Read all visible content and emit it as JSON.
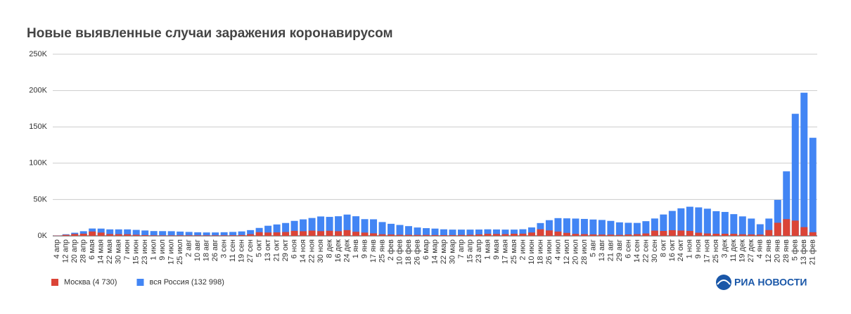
{
  "chart_data": {
    "type": "bar",
    "title": "Новые выявленные случаи заражения коронавирусом",
    "categories": [
      "4 апр",
      "12 апр",
      "20 апр",
      "28 апр",
      "6 мая",
      "14 мая",
      "22 мая",
      "30 мая",
      "7 июн",
      "15 июн",
      "23 июн",
      "1 июл",
      "9 июл",
      "17 июл",
      "25 июл",
      "2 авг",
      "10 авг",
      "18 авг",
      "26 авг",
      "3 сен",
      "11 сен",
      "19 сен",
      "27 сен",
      "5 окт",
      "13 окт",
      "21 окт",
      "29 окт",
      "6 ноя",
      "14 ноя",
      "22 ноя",
      "30 ноя",
      "8 дек",
      "16 дек",
      "24 дек",
      "1 янв",
      "9 янв",
      "17 янв",
      "25 янв",
      "2 фев",
      "10 фев",
      "18 фев",
      "26 фев",
      "6 мар",
      "14 мар",
      "22 мар",
      "30 мар",
      "7 апр",
      "15 апр",
      "23 апр",
      "1 мая",
      "9 мая",
      "17 мая",
      "25 мая",
      "2 июн",
      "10 июн",
      "18 июн",
      "26 июн",
      "4 июл",
      "12 июл",
      "20 июл",
      "28 июл",
      "5 авг",
      "13 авг",
      "21 авг",
      "29 авг",
      "6 сен",
      "14 сен",
      "22 сен",
      "30 сен",
      "8 окт",
      "16 окт",
      "24 окт",
      "1 ноя",
      "9 ноя",
      "17 ноя",
      "25 ноя",
      "3 дек",
      "11 дек",
      "19 дек",
      "27 дек",
      "4 янв",
      "12 янв",
      "20 янв",
      "28 янв",
      "5 фев",
      "13 фев",
      "21 фев"
    ],
    "series": [
      {
        "name": "вся Россия (132 998)",
        "color": "#4285f4",
        "values": [
          600,
          2200,
          4300,
          6400,
          10100,
          10000,
          8900,
          8900,
          8900,
          8200,
          7400,
          6600,
          6500,
          6400,
          5900,
          5400,
          4900,
          4700,
          4700,
          5000,
          5400,
          6100,
          7900,
          10900,
          13900,
          15700,
          17700,
          20600,
          22700,
          24600,
          26700,
          26100,
          27000,
          29300,
          27000,
          23000,
          22800,
          19000,
          16600,
          15000,
          13400,
          11500,
          10600,
          10000,
          9000,
          8600,
          8600,
          8600,
          8700,
          9000,
          8800,
          8600,
          8600,
          9100,
          11600,
          17600,
          21600,
          24400,
          24100,
          23800,
          23300,
          22500,
          21900,
          20600,
          18600,
          18000,
          17800,
          20200,
          23900,
          29400,
          34300,
          37900,
          40100,
          39200,
          37400,
          33900,
          32900,
          29900,
          26800,
          23800,
          16000,
          23800,
          49500,
          88800,
          168000,
          197000,
          135000
        ]
      },
      {
        "name": "Москва (4 730)",
        "color": "#db4437",
        "values": [
          400,
          1400,
          2600,
          3000,
          6000,
          4500,
          2500,
          2300,
          2200,
          1500,
          1000,
          700,
          600,
          600,
          700,
          700,
          700,
          700,
          700,
          700,
          800,
          1100,
          2300,
          5000,
          4600,
          4800,
          5300,
          6900,
          6400,
          7200,
          6500,
          7000,
          6400,
          7900,
          5600,
          4500,
          3500,
          2200,
          1900,
          1500,
          1400,
          1300,
          1300,
          1100,
          1000,
          1100,
          1300,
          1500,
          2000,
          2800,
          2600,
          2400,
          2900,
          3000,
          4600,
          9000,
          7500,
          5900,
          4100,
          2700,
          2400,
          2000,
          1800,
          1700,
          1400,
          1900,
          2400,
          3300,
          7200,
          6800,
          7800,
          7300,
          6800,
          4300,
          3300,
          2900,
          2900,
          2800,
          2200,
          2000,
          1800,
          8000,
          18000,
          23000,
          21000,
          12000,
          5000
        ]
      }
    ],
    "legend_order": [
      1,
      0
    ],
    "ylim": [
      0,
      250000
    ],
    "yticks": [
      {
        "value": 0,
        "label": "0K"
      },
      {
        "value": 50000,
        "label": "50K"
      },
      {
        "value": 100000,
        "label": "100K"
      },
      {
        "value": 150000,
        "label": "150K"
      },
      {
        "value": 200000,
        "label": "200K"
      },
      {
        "value": 250000,
        "label": "250K"
      }
    ],
    "grid": true
  },
  "logo": "РИА НОВОСТИ"
}
